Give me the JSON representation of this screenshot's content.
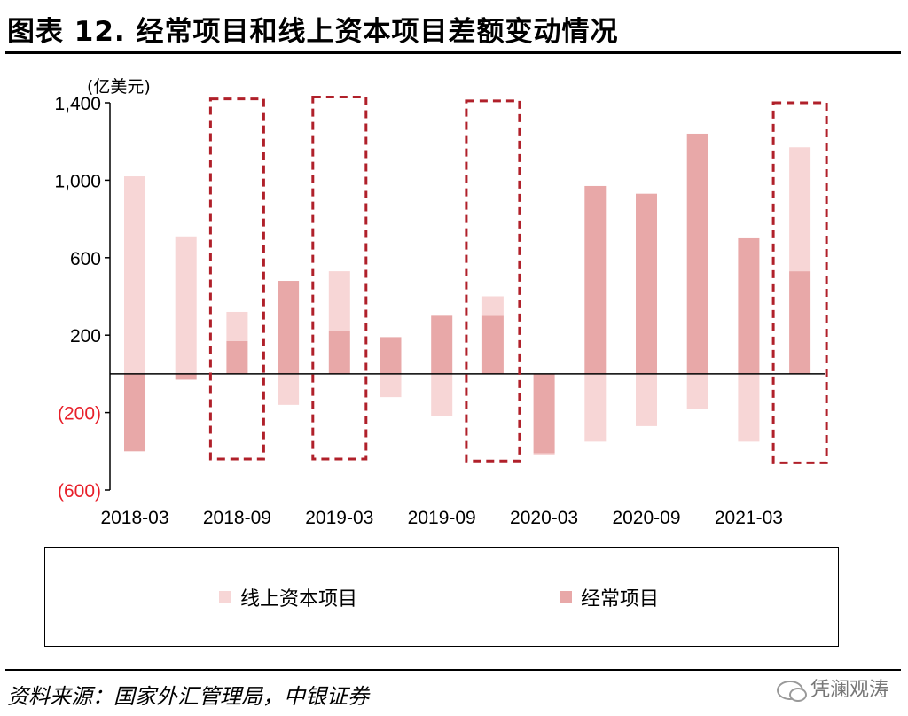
{
  "header": {
    "title": "图表 12. 经常项目和线上资本项目差额变动情况"
  },
  "footer": {
    "source": "资料来源：国家外汇管理局，中银证券",
    "watermark": "凭澜观涛",
    "watermark_icon": "wechat-icon"
  },
  "colors": {
    "capital": "#f7d6d6",
    "current": "#e8a8a8",
    "highlight_box": "#b0202a",
    "negative_label": "#e8202a"
  },
  "chart_data": {
    "type": "bar",
    "stacked": true,
    "unit_label": "(亿美元)",
    "ylim": [
      -600,
      1400
    ],
    "y_ticks": [
      {
        "value": 1400,
        "label": "1,400"
      },
      {
        "value": 1000,
        "label": "1,000"
      },
      {
        "value": 600,
        "label": "600"
      },
      {
        "value": 200,
        "label": "200"
      },
      {
        "value": -200,
        "label": "(200)"
      },
      {
        "value": -600,
        "label": "(600)"
      }
    ],
    "categories": [
      "2018-03",
      "2018-06",
      "2018-09",
      "2018-12",
      "2019-03",
      "2019-06",
      "2019-09",
      "2019-12",
      "2020-03",
      "2020-06",
      "2020-09",
      "2020-12",
      "2021-03",
      "2021-06"
    ],
    "x_tick_labels": [
      "2018-03",
      "2018-09",
      "2019-03",
      "2019-09",
      "2020-03",
      "2020-09",
      "2021-03"
    ],
    "x_tick_positions": [
      0,
      2,
      4,
      6,
      8,
      10,
      12
    ],
    "series": [
      {
        "name": "线上资本项目",
        "values": [
          1020,
          710,
          150,
          -160,
          310,
          -120,
          -220,
          100,
          -10,
          -350,
          -270,
          -180,
          -350,
          640
        ]
      },
      {
        "name": "经常项目",
        "values": [
          -400,
          -30,
          170,
          480,
          220,
          190,
          300,
          300,
          -410,
          970,
          930,
          1240,
          700,
          530
        ]
      }
    ],
    "highlight_boxes": [
      {
        "from": "2018-09",
        "to": "2018-09",
        "y_top": 1420,
        "y_bottom": -440
      },
      {
        "from": "2019-03",
        "to": "2019-03",
        "y_top": 1430,
        "y_bottom": -440
      },
      {
        "from": "2019-12",
        "to": "2019-12",
        "y_top": 1410,
        "y_bottom": -450
      },
      {
        "from": "2021-06",
        "to": "2021-06",
        "y_top": 1400,
        "y_bottom": -460
      }
    ],
    "legend_position": "bottom",
    "grid": false
  }
}
